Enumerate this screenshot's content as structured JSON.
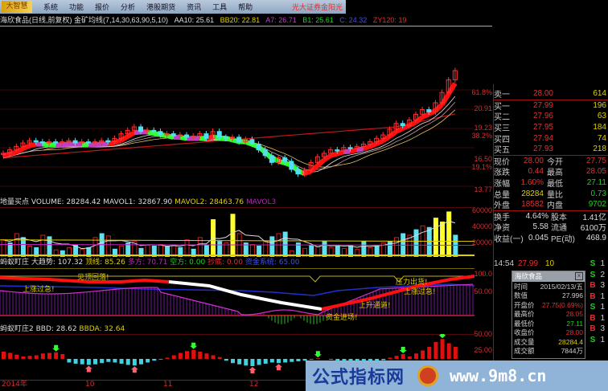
{
  "menubar": {
    "logo": "大智慧",
    "items": [
      "系统",
      "功能",
      "报价",
      "分析",
      "港股期货",
      "资讯",
      "工具",
      "帮助"
    ],
    "broker": "光大证券金阳光"
  },
  "infoline": {
    "title": "海欣食品(日线,前复权) 金矿均线(7,14,30,63,90,5,10)",
    "aa10": "AA10: 25.61",
    "bb20": "BB20: 22.81",
    "a7": "A7: 26.71",
    "b1": "B1: 25.61",
    "c": "C: 24.32",
    "zy120": "ZY120: 19"
  },
  "main_axis": [
    "61.8%",
    "20.91",
    "19.23",
    "38.2%",
    "16.50",
    "19.1%",
    "13.77"
  ],
  "main_closes": [
    17.0,
    17.3,
    17.6,
    17.9,
    18.1,
    18.0,
    17.9,
    18.0,
    17.9,
    18.0,
    18.1,
    17.9,
    18.0,
    17.9,
    18.0,
    18.1,
    18.0,
    18.3,
    18.7,
    19.0,
    19.3,
    18.9,
    19.0,
    18.9,
    18.6,
    18.7,
    18.5,
    18.6,
    18.4,
    18.5,
    18.7,
    18.3,
    18.9,
    18.4,
    18.3,
    18.4,
    18.0,
    18.2,
    17.8,
    17.3,
    16.8,
    16.2,
    16.6,
    16.3,
    15.6,
    15.2,
    15.5,
    16.2,
    16.7,
    17.0,
    17.3,
    17.2,
    17.5,
    17.4,
    17.6,
    17.8,
    18.0,
    18.3,
    18.6,
    19.1,
    19.6,
    19.4,
    19.9,
    20.4,
    20.8,
    20.6,
    21.4,
    22.3,
    23.4,
    24.2
  ],
  "volume": {
    "label": "地量买点 VOLUME: 28284.42",
    "mavol1": "MAVOL1: 32867.90",
    "mavol2": "MAVOL2: 28463.76",
    "mavol3": "MAVOL3",
    "axis": [
      "60000",
      "40000",
      "20000"
    ],
    "values": [
      22000,
      18000,
      30000,
      25000,
      14000,
      12000,
      28000,
      26000,
      9000,
      8000,
      12000,
      15000,
      10000,
      12000,
      25000,
      30000,
      27000,
      10000,
      14000,
      18000,
      20000,
      11000,
      15000,
      14000,
      16000,
      13000,
      15000,
      12000,
      22000,
      10000,
      25000,
      15000,
      48000,
      20000,
      18000,
      55000,
      30000,
      18000,
      16000,
      14000,
      20000,
      26000,
      30000,
      32000,
      8000,
      18000,
      11000,
      15000,
      13000,
      20000,
      12000,
      14000,
      11000,
      15000,
      10000,
      20000,
      12000,
      15000,
      18000,
      20000,
      25000,
      30000,
      28000,
      35000,
      40000,
      38000,
      50000,
      45000,
      58000,
      28000
    ]
  },
  "ind1": {
    "name": "蚂蚁盯庄",
    "dsh": "大趋势: 107.32",
    "dx": "顶线: 85.26",
    "df": "多方: 70.71",
    "kf": "空方: 0.00",
    "cd": "抄底: 0.00",
    "zj": "资金系统: 65.00",
    "axis": [
      "100.0",
      "50.00"
    ],
    "notes": [
      "见顶回落!",
      "上涨过急!",
      "资金进场!",
      "上升通道!",
      "压力出货!",
      "上涨过急!"
    ]
  },
  "ind2": {
    "name": "蚂蚁盯庄2",
    "bbd": "BBD: 28.62",
    "bbda": "BBDA: 32.64",
    "axis": [
      "50.00",
      "25.00"
    ],
    "values": [
      12,
      10,
      7,
      4,
      5,
      6,
      9,
      10,
      11,
      8,
      -6,
      -8,
      -9,
      -10,
      -9,
      -7,
      -5,
      -6,
      -8,
      -10,
      -11,
      -9,
      -6,
      -3,
      -1,
      2,
      6,
      10,
      13,
      15,
      12,
      9,
      6,
      3,
      -3,
      -7,
      -9,
      -11,
      -12,
      -10,
      -8,
      -6,
      -7,
      -6,
      -5,
      -4,
      -3,
      -1,
      1,
      0,
      -1,
      -4,
      -8,
      -12,
      -14,
      -13,
      -9,
      -4,
      -2,
      2,
      5,
      8,
      4,
      9,
      14,
      20,
      28,
      33,
      26,
      20
    ]
  },
  "dates": [
    "2014年",
    "10",
    "11",
    "12"
  ],
  "quote": {
    "asks": [
      {
        "k": "卖一",
        "p": "28.00",
        "n": "614"
      }
    ],
    "bids": [
      {
        "k": "买一",
        "p": "27.99",
        "n": "196"
      },
      {
        "k": "买二",
        "p": "27.96",
        "n": "63"
      },
      {
        "k": "买三",
        "p": "27.95",
        "n": "184"
      },
      {
        "k": "买四",
        "p": "27.94",
        "n": "74"
      },
      {
        "k": "买五",
        "p": "27.93",
        "n": "218"
      }
    ],
    "stats1": [
      {
        "k": "现价",
        "v": "28.00",
        "k2": "今开",
        "v2": "27.75",
        "c": "#e03030",
        "c2": "#e03030"
      },
      {
        "k": "涨跌",
        "v": "0.44",
        "k2": "最高",
        "v2": "28.05",
        "c": "#e03030",
        "c2": "#e03030"
      },
      {
        "k": "涨幅",
        "v": "1.60%",
        "k2": "最低",
        "v2": "27.11",
        "c": "#e03030",
        "c2": "#20d020"
      },
      {
        "k": "总量",
        "v": "28284",
        "k2": "量比",
        "v2": "0.73",
        "c": "#e0d000",
        "c2": "#20d020"
      },
      {
        "k": "外盘",
        "v": "18582",
        "k2": "内盘",
        "v2": "9702",
        "c": "#e03030",
        "c2": "#20d020"
      }
    ],
    "stats2": [
      {
        "k": "换手",
        "v": "4.64%",
        "k2": "股本",
        "v2": "1.41亿"
      },
      {
        "k": "净资",
        "v": "5.58",
        "k2": "流通",
        "v2": "6100万"
      },
      {
        "k": "收益(一)",
        "v": "0.045",
        "k2": "PE(动)",
        "v2": "468.9"
      }
    ]
  },
  "trades": [
    {
      "t": "14:54",
      "p": "27.99",
      "n": "10",
      "bs": "S",
      "m": "1"
    },
    {
      "bs": "S",
      "m": "2"
    },
    {
      "bs": "B",
      "m": "3"
    },
    {
      "bs": "B",
      "m": "1"
    },
    {
      "bs": "S",
      "m": "1"
    },
    {
      "bs": "B",
      "m": "1"
    },
    {
      "bs": "B",
      "m": "3"
    },
    {
      "bs": "S",
      "m": "1"
    }
  ],
  "popup": {
    "title": "海欣食品",
    "rows": [
      {
        "k": "时间",
        "v": "2015/02/13/五",
        "c": "#ccc"
      },
      {
        "k": "数值",
        "v": "27.996",
        "c": "#ccc"
      },
      {
        "k": "开盘价",
        "v": "27.75(0.69%)",
        "c": "#e03030"
      },
      {
        "k": "最高价",
        "v": "28.05",
        "c": "#e03030"
      },
      {
        "k": "最低价",
        "v": "27.11",
        "c": "#20d020"
      },
      {
        "k": "收盘价",
        "v": "28.00",
        "c": "#e03030"
      },
      {
        "k": "成交量",
        "v": "28284.4",
        "c": "#e0d000"
      },
      {
        "k": "成交额",
        "v": "7844万",
        "c": "#ccc"
      }
    ]
  },
  "banner": {
    "text": "公式指标网",
    "url": "www.9m8.cn"
  }
}
